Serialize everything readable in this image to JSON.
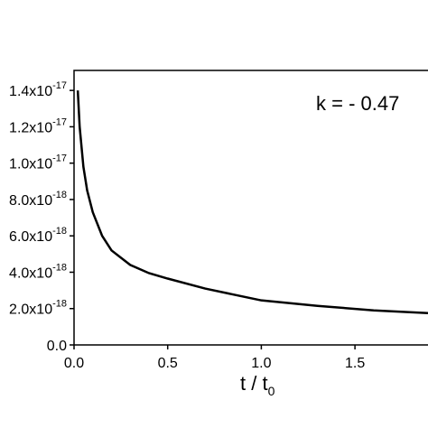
{
  "chart_data": {
    "type": "line",
    "annotation": "k = - 0.47",
    "xlabel": "t / t",
    "xlabel_sub": "0",
    "x": [
      0.02,
      0.03,
      0.05,
      0.07,
      0.1,
      0.15,
      0.2,
      0.3,
      0.4,
      0.5,
      0.7,
      1.0,
      1.3,
      1.6,
      1.89
    ],
    "values": [
      1.4e-17,
      1.2e-17,
      9.8e-18,
      8.5e-18,
      7.3e-18,
      6e-18,
      5.2e-18,
      4.4e-18,
      3.95e-18,
      3.65e-18,
      3.1e-18,
      2.45e-18,
      2.15e-18,
      1.9e-18,
      1.75e-18
    ],
    "color": "#000000",
    "xlim": [
      0,
      1.89
    ],
    "ylim": [
      0,
      1.51e-17
    ],
    "xticks": [
      {
        "value": 0,
        "label": "0.0"
      },
      0.5,
      {
        "value": 1,
        "label": "1.0"
      },
      1.5
    ],
    "yticks": [
      {
        "value": 0,
        "label": "0.0"
      },
      {
        "value": 2e-18,
        "label": "2.0x10",
        "exponent": "-18"
      },
      {
        "value": 4e-18,
        "label": "4.0x10",
        "exponent": "-18"
      },
      {
        "value": 6e-18,
        "label": "6.0x10",
        "exponent": "-18"
      },
      {
        "value": 8e-18,
        "label": "8.0x10",
        "exponent": "-18"
      },
      {
        "value": 1e-17,
        "label": "1.0x10",
        "exponent": "-17"
      },
      {
        "value": 1.2e-17,
        "label": "1.2x10",
        "exponent": "-17"
      },
      {
        "value": 1.4e-17,
        "label": "1.4x10",
        "exponent": "-17"
      }
    ]
  }
}
